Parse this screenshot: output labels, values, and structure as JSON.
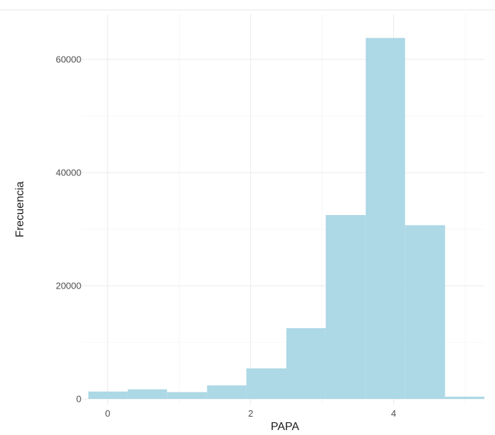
{
  "chart_data": {
    "type": "bar",
    "title": "",
    "xlabel": "PAPA",
    "ylabel": "Frecuencia",
    "bar_color": "#add8e6",
    "grid": true,
    "legend": "none",
    "xlim": [
      -0.27,
      5.27
    ],
    "ylim": [
      -1000,
      68000
    ],
    "x_ticks": [
      0,
      2,
      4
    ],
    "x_tick_labels": [
      "0",
      "2",
      "4"
    ],
    "y_ticks": [
      0,
      20000,
      40000,
      60000
    ],
    "y_tick_labels": [
      "0",
      "20000",
      "40000",
      "60000"
    ],
    "bins": [
      {
        "x0": -0.27,
        "x1": 0.28,
        "count": 1300
      },
      {
        "x0": 0.28,
        "x1": 0.83,
        "count": 1700
      },
      {
        "x0": 0.83,
        "x1": 1.39,
        "count": 1200
      },
      {
        "x0": 1.39,
        "x1": 1.94,
        "count": 2400
      },
      {
        "x0": 1.94,
        "x1": 2.5,
        "count": 5400
      },
      {
        "x0": 2.5,
        "x1": 3.05,
        "count": 12500
      },
      {
        "x0": 3.05,
        "x1": 3.61,
        "count": 32500
      },
      {
        "x0": 3.61,
        "x1": 4.16,
        "count": 63800
      },
      {
        "x0": 4.16,
        "x1": 4.72,
        "count": 30700
      },
      {
        "x0": 4.72,
        "x1": 5.27,
        "count": 400
      }
    ]
  }
}
